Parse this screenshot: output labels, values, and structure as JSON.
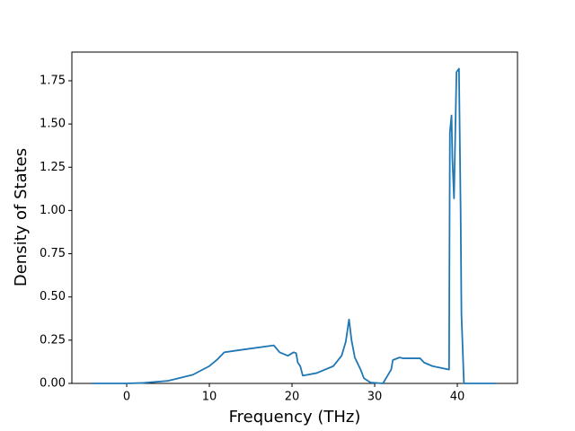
{
  "chart_data": {
    "type": "line",
    "xlabel": "Frequency (THz)",
    "ylabel": "Density of States",
    "x": [
      -4.2,
      0,
      2,
      5,
      8,
      10,
      11,
      11.8,
      14,
      17.8,
      18.5,
      19.5,
      20.2,
      20.5,
      20.7,
      21,
      21.3,
      23,
      25,
      26,
      26.5,
      26.9,
      27.2,
      27.6,
      28.3,
      28.7,
      29.5,
      31,
      31.5,
      32,
      32.2,
      33,
      33.5,
      35.5,
      36,
      37,
      39,
      39.1,
      39.3,
      39.4,
      39.6,
      39.9,
      40.2,
      40.4,
      40.5,
      40.8,
      44.6
    ],
    "values": [
      0,
      0,
      0.003,
      0.015,
      0.05,
      0.1,
      0.14,
      0.18,
      0.195,
      0.22,
      0.18,
      0.16,
      0.18,
      0.175,
      0.12,
      0.1,
      0.045,
      0.06,
      0.1,
      0.16,
      0.24,
      0.37,
      0.25,
      0.15,
      0.08,
      0.03,
      0.005,
      0,
      0.04,
      0.08,
      0.135,
      0.15,
      0.145,
      0.145,
      0.12,
      0.1,
      0.08,
      1.45,
      1.55,
      1.3,
      1.07,
      1.8,
      1.82,
      1.0,
      0.4,
      0,
      0
    ],
    "color": "#1f77b4",
    "xlim": [
      -6.63,
      47.28
    ],
    "xticks": [
      0,
      10,
      20,
      30,
      40
    ],
    "ylim": [
      0,
      1.916
    ],
    "yticks": [
      {
        "value": 0,
        "label": "0.00"
      },
      {
        "value": 0.25,
        "label": "0.25"
      },
      {
        "value": 0.5,
        "label": "0.50"
      },
      {
        "value": 0.75,
        "label": "0.75"
      },
      {
        "value": 1.0,
        "label": "1.00"
      },
      {
        "value": 1.25,
        "label": "1.25"
      },
      {
        "value": 1.5,
        "label": "1.50"
      },
      {
        "value": 1.75,
        "label": "1.75"
      }
    ]
  }
}
